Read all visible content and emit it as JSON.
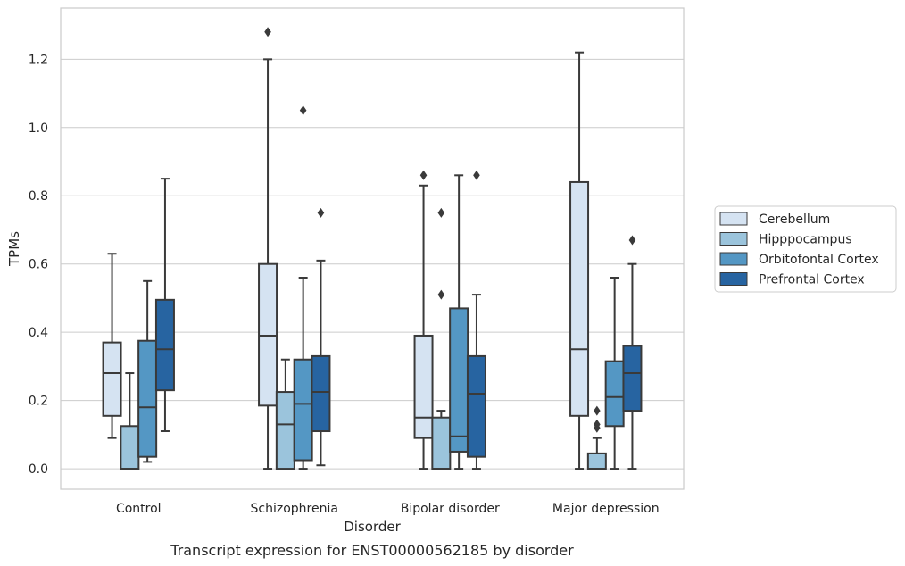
{
  "chart_data": {
    "type": "box",
    "title": "",
    "caption": "Transcript expression for ENST00000562185 by disorder",
    "xlabel": "Disorder",
    "ylabel": "TPMs",
    "ylim": [
      -0.06,
      1.35
    ],
    "yticks": [
      "0.0",
      "0.2",
      "0.4",
      "0.6",
      "0.8",
      "1.0",
      "1.2"
    ],
    "categories": [
      "Control",
      "Schizophrenia",
      "Bipolar disorder",
      "Major depression"
    ],
    "grid": true,
    "legend_placement": "right",
    "series": [
      {
        "name": "Cerebellum",
        "color": "#d5e3f2",
        "boxes": [
          {
            "whisker_low": 0.09,
            "q1": 0.155,
            "median": 0.28,
            "q3": 0.37,
            "whisker_high": 0.63,
            "outliers": []
          },
          {
            "whisker_low": 0.0,
            "q1": 0.185,
            "median": 0.39,
            "q3": 0.6,
            "whisker_high": 1.2,
            "outliers": [
              1.28
            ]
          },
          {
            "whisker_low": 0.0,
            "q1": 0.09,
            "median": 0.15,
            "q3": 0.39,
            "whisker_high": 0.83,
            "outliers": [
              0.86
            ]
          },
          {
            "whisker_low": 0.0,
            "q1": 0.155,
            "median": 0.35,
            "q3": 0.84,
            "whisker_high": 1.22,
            "outliers": []
          }
        ]
      },
      {
        "name": "Hipppocampus",
        "color": "#9bc4dc",
        "boxes": [
          {
            "whisker_low": 0.0,
            "q1": 0.0,
            "median": 0.0,
            "q3": 0.125,
            "whisker_high": 0.28,
            "outliers": []
          },
          {
            "whisker_low": 0.0,
            "q1": 0.0,
            "median": 0.13,
            "q3": 0.225,
            "whisker_high": 0.32,
            "outliers": []
          },
          {
            "whisker_low": 0.0,
            "q1": 0.0,
            "median": 0.0,
            "q3": 0.15,
            "whisker_high": 0.17,
            "outliers": [
              0.51,
              0.75
            ]
          },
          {
            "whisker_low": 0.0,
            "q1": 0.0,
            "median": 0.0,
            "q3": 0.045,
            "whisker_high": 0.09,
            "outliers": [
              0.12,
              0.13,
              0.17
            ]
          }
        ]
      },
      {
        "name": "Orbitofontal Cortex",
        "color": "#5497c4",
        "boxes": [
          {
            "whisker_low": 0.02,
            "q1": 0.035,
            "median": 0.18,
            "q3": 0.375,
            "whisker_high": 0.55,
            "outliers": []
          },
          {
            "whisker_low": 0.0,
            "q1": 0.025,
            "median": 0.19,
            "q3": 0.32,
            "whisker_high": 0.56,
            "outliers": [
              1.05
            ]
          },
          {
            "whisker_low": 0.0,
            "q1": 0.05,
            "median": 0.095,
            "q3": 0.47,
            "whisker_high": 0.86,
            "outliers": []
          },
          {
            "whisker_low": 0.0,
            "q1": 0.125,
            "median": 0.21,
            "q3": 0.315,
            "whisker_high": 0.56,
            "outliers": []
          }
        ]
      },
      {
        "name": "Prefrontal Cortex",
        "color": "#2764a1",
        "boxes": [
          {
            "whisker_low": 0.11,
            "q1": 0.23,
            "median": 0.35,
            "q3": 0.495,
            "whisker_high": 0.85,
            "outliers": []
          },
          {
            "whisker_low": 0.01,
            "q1": 0.11,
            "median": 0.225,
            "q3": 0.33,
            "whisker_high": 0.61,
            "outliers": [
              0.75
            ]
          },
          {
            "whisker_low": 0.0,
            "q1": 0.035,
            "median": 0.22,
            "q3": 0.33,
            "whisker_high": 0.51,
            "outliers": [
              0.86
            ]
          },
          {
            "whisker_low": 0.0,
            "q1": 0.17,
            "median": 0.28,
            "q3": 0.36,
            "whisker_high": 0.6,
            "outliers": [
              0.67
            ]
          }
        ]
      }
    ]
  }
}
